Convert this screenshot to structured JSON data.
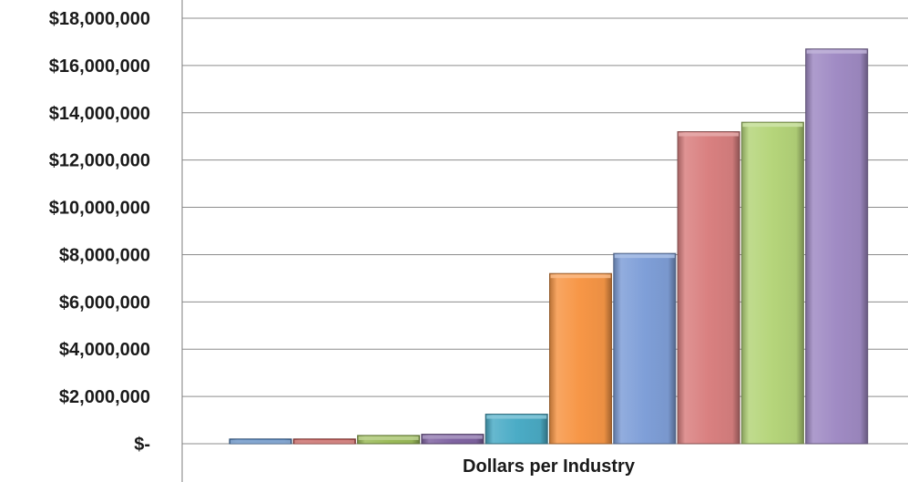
{
  "chart_data": {
    "type": "bar",
    "title": "",
    "xlabel": "Dollars per Industry",
    "ylabel": "",
    "ylim": [
      0,
      18000000
    ],
    "y_ticks": [
      0,
      2000000,
      4000000,
      6000000,
      8000000,
      10000000,
      12000000,
      14000000,
      16000000,
      18000000
    ],
    "y_tick_labels": [
      "$-",
      "$2,000,000",
      "$4,000,000",
      "$6,000,000",
      "$8,000,000",
      "$10,000,000",
      "$12,000,000",
      "$14,000,000",
      "$16,000,000",
      "$18,000,000"
    ],
    "grid": true,
    "legend": "none",
    "series": [
      {
        "color": "#4f81bd",
        "value": 200000
      },
      {
        "color": "#c0504d",
        "value": 200000
      },
      {
        "color": "#9bbb59",
        "value": 350000
      },
      {
        "color": "#8064a2",
        "value": 400000
      },
      {
        "color": "#4bacc6",
        "value": 1250000
      },
      {
        "color": "#f79646",
        "value": 7200000
      },
      {
        "color": "#7f9fd8",
        "value": 8050000
      },
      {
        "color": "#d98080",
        "value": 13200000
      },
      {
        "color": "#b5d57a",
        "value": 13600000
      },
      {
        "color": "#a08bc4",
        "value": 16700000
      }
    ]
  }
}
